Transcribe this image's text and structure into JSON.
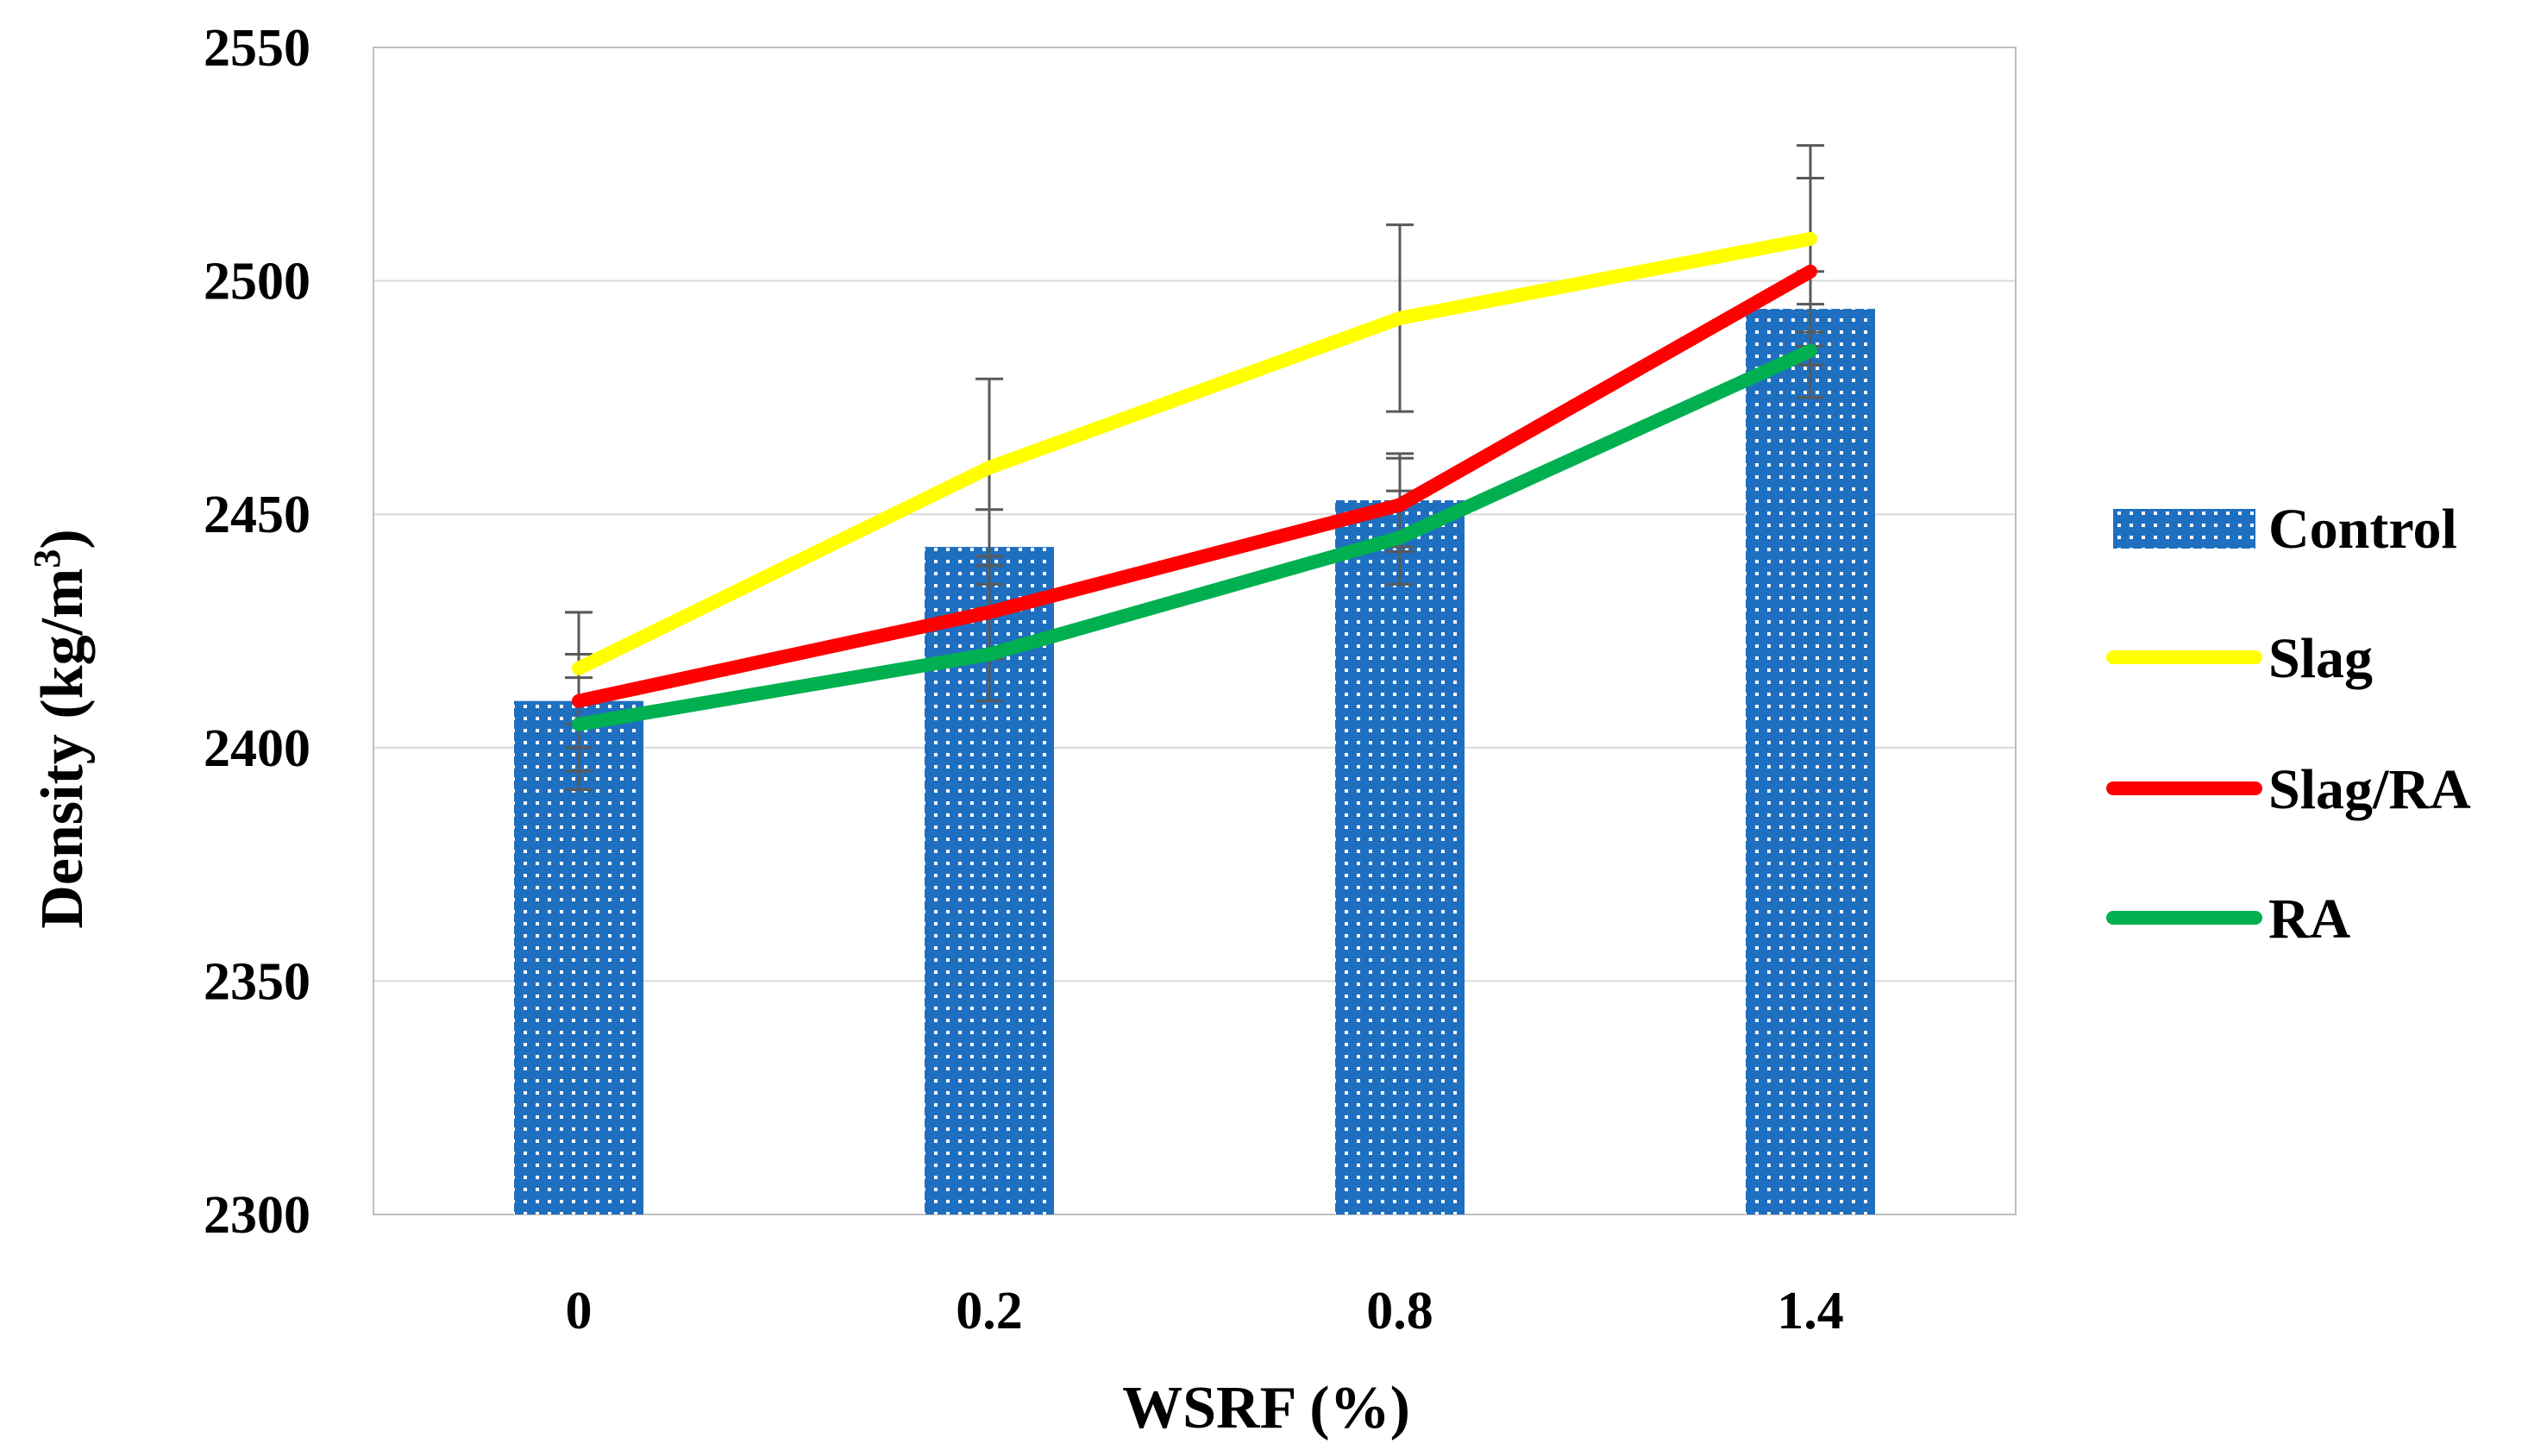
{
  "chart_data": {
    "type": "bar",
    "title": "",
    "xlabel": "WSRF (%)",
    "ylabel_main": "Density (kg/m",
    "ylabel_sup": "3",
    "ylabel_close": ")",
    "categories": [
      "0",
      "0.2",
      "0.8",
      "1.4"
    ],
    "ylim": [
      2300,
      2550
    ],
    "yticks": [
      2300,
      2350,
      2400,
      2450,
      2500,
      2550
    ],
    "ytick_labels": [
      "2300",
      "2350",
      "2400",
      "2450",
      "2500",
      "2550"
    ],
    "grid": true,
    "legend_position": "right",
    "series": [
      {
        "name": "Control",
        "kind": "bar",
        "color": "#1f6fc0",
        "values": [
          2410,
          2443,
          2453,
          2494
        ],
        "error": [
          10,
          8,
          10,
          8
        ]
      },
      {
        "name": "Slag",
        "kind": "line",
        "color": "#ffff00",
        "values": [
          2417,
          2460,
          2492,
          2509
        ],
        "error": [
          12,
          19,
          20,
          20
        ]
      },
      {
        "name": "Slag/RA",
        "kind": "line",
        "color": "#ff0000",
        "values": [
          2410,
          2429,
          2452,
          2502
        ],
        "error": [
          19,
          10,
          10,
          20
        ]
      },
      {
        "name": "RA",
        "kind": "line",
        "color": "#00b050",
        "values": [
          2405,
          2420,
          2445,
          2485
        ],
        "error": [
          10,
          10,
          10,
          10
        ]
      }
    ]
  }
}
